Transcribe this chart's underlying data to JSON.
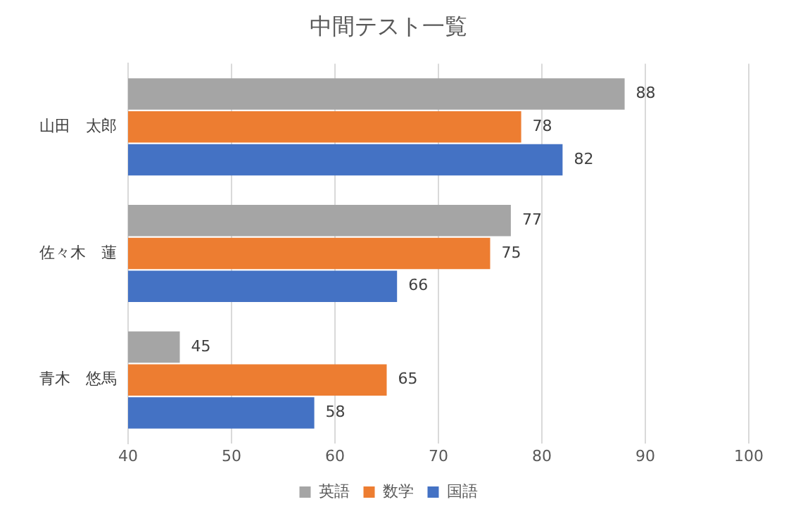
{
  "chart_data": {
    "type": "bar",
    "orientation": "horizontal",
    "title": "中間テスト一覧",
    "categories": [
      "山田　太郎",
      "佐々木　蓮",
      "青木　悠馬"
    ],
    "series": [
      {
        "name": "英語",
        "color": "#a5a5a5",
        "values": [
          88,
          77,
          45
        ]
      },
      {
        "name": "数学",
        "color": "#ed7d31",
        "values": [
          78,
          75,
          65
        ]
      },
      {
        "name": "国語",
        "color": "#4472c4",
        "values": [
          82,
          66,
          58
        ]
      }
    ],
    "xlim": [
      40,
      100
    ],
    "xticks": [
      40,
      50,
      60,
      70,
      80,
      90,
      100
    ],
    "grid": "x",
    "legend": "bottom",
    "data_labels": true
  }
}
